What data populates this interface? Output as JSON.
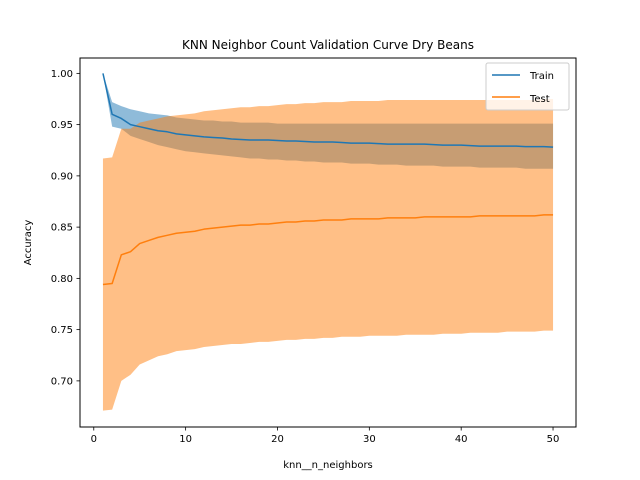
{
  "chart_data": {
    "type": "line",
    "title": "KNN Neighbor Count Validation Curve Dry Beans",
    "xlabel": "knn__n_neighbors",
    "ylabel": "Accuracy",
    "xlim": [
      -1.5,
      52.5
    ],
    "ylim": [
      0.655,
      1.015
    ],
    "x_ticks": [
      0,
      10,
      20,
      30,
      40,
      50
    ],
    "y_ticks": [
      0.7,
      0.75,
      0.8,
      0.85,
      0.9,
      0.95,
      1.0
    ],
    "y_tick_labels": [
      "0.70",
      "0.75",
      "0.80",
      "0.85",
      "0.90",
      "0.95",
      "1.00"
    ],
    "grid": false,
    "legend_position": "upper right",
    "x": [
      1,
      2,
      3,
      4,
      5,
      6,
      7,
      8,
      9,
      10,
      11,
      12,
      13,
      14,
      15,
      16,
      17,
      18,
      19,
      20,
      21,
      22,
      23,
      24,
      25,
      26,
      27,
      28,
      29,
      30,
      31,
      32,
      33,
      34,
      35,
      36,
      37,
      38,
      39,
      40,
      41,
      42,
      43,
      44,
      45,
      46,
      47,
      48,
      49,
      50
    ],
    "series": [
      {
        "name": "Train",
        "color": "#1f77b4",
        "band_color": "#1f77b4",
        "values": [
          1.0,
          0.96,
          0.956,
          0.95,
          0.948,
          0.946,
          0.944,
          0.943,
          0.941,
          0.94,
          0.939,
          0.938,
          0.9375,
          0.937,
          0.936,
          0.9355,
          0.935,
          0.935,
          0.935,
          0.9345,
          0.934,
          0.934,
          0.9335,
          0.933,
          0.933,
          0.933,
          0.9325,
          0.932,
          0.932,
          0.932,
          0.9315,
          0.931,
          0.931,
          0.931,
          0.931,
          0.931,
          0.9305,
          0.93,
          0.93,
          0.93,
          0.9295,
          0.929,
          0.929,
          0.929,
          0.929,
          0.929,
          0.9285,
          0.9285,
          0.9285,
          0.928
        ],
        "lower": [
          1.0,
          0.948,
          0.946,
          0.939,
          0.936,
          0.933,
          0.93,
          0.928,
          0.926,
          0.924,
          0.923,
          0.922,
          0.921,
          0.92,
          0.919,
          0.918,
          0.917,
          0.917,
          0.916,
          0.916,
          0.915,
          0.915,
          0.914,
          0.914,
          0.913,
          0.913,
          0.913,
          0.912,
          0.912,
          0.912,
          0.911,
          0.911,
          0.911,
          0.91,
          0.91,
          0.91,
          0.91,
          0.909,
          0.909,
          0.909,
          0.909,
          0.908,
          0.908,
          0.908,
          0.908,
          0.908,
          0.907,
          0.907,
          0.907,
          0.907
        ],
        "upper": [
          1.0,
          0.972,
          0.968,
          0.965,
          0.963,
          0.961,
          0.96,
          0.959,
          0.957,
          0.956,
          0.955,
          0.954,
          0.954,
          0.953,
          0.953,
          0.952,
          0.952,
          0.952,
          0.952,
          0.951,
          0.951,
          0.951,
          0.951,
          0.951,
          0.951,
          0.951,
          0.951,
          0.951,
          0.951,
          0.951,
          0.951,
          0.951,
          0.951,
          0.951,
          0.951,
          0.951,
          0.951,
          0.951,
          0.951,
          0.951,
          0.951,
          0.951,
          0.951,
          0.951,
          0.951,
          0.951,
          0.951,
          0.951,
          0.951,
          0.951
        ]
      },
      {
        "name": "Test",
        "color": "#ff7f0e",
        "band_color": "#ff7f0e",
        "values": [
          0.794,
          0.795,
          0.823,
          0.826,
          0.834,
          0.837,
          0.84,
          0.842,
          0.844,
          0.845,
          0.846,
          0.848,
          0.849,
          0.85,
          0.851,
          0.852,
          0.852,
          0.853,
          0.853,
          0.854,
          0.855,
          0.855,
          0.856,
          0.856,
          0.857,
          0.857,
          0.857,
          0.858,
          0.858,
          0.858,
          0.858,
          0.859,
          0.859,
          0.859,
          0.859,
          0.86,
          0.86,
          0.86,
          0.86,
          0.86,
          0.86,
          0.861,
          0.861,
          0.861,
          0.861,
          0.861,
          0.861,
          0.861,
          0.862,
          0.862
        ],
        "lower": [
          0.671,
          0.672,
          0.7,
          0.706,
          0.716,
          0.72,
          0.724,
          0.726,
          0.729,
          0.73,
          0.731,
          0.733,
          0.734,
          0.735,
          0.736,
          0.736,
          0.737,
          0.738,
          0.738,
          0.739,
          0.74,
          0.74,
          0.741,
          0.741,
          0.742,
          0.742,
          0.743,
          0.743,
          0.743,
          0.744,
          0.744,
          0.744,
          0.744,
          0.745,
          0.745,
          0.745,
          0.745,
          0.746,
          0.746,
          0.746,
          0.747,
          0.747,
          0.747,
          0.747,
          0.748,
          0.748,
          0.748,
          0.748,
          0.749,
          0.749
        ],
        "upper": [
          0.917,
          0.918,
          0.946,
          0.946,
          0.952,
          0.954,
          0.956,
          0.958,
          0.959,
          0.96,
          0.961,
          0.963,
          0.964,
          0.965,
          0.966,
          0.967,
          0.967,
          0.968,
          0.968,
          0.969,
          0.97,
          0.97,
          0.971,
          0.971,
          0.972,
          0.972,
          0.972,
          0.973,
          0.973,
          0.973,
          0.973,
          0.974,
          0.974,
          0.974,
          0.974,
          0.974,
          0.974,
          0.974,
          0.974,
          0.974,
          0.974,
          0.974,
          0.974,
          0.974,
          0.974,
          0.974,
          0.974,
          0.974,
          0.975,
          0.975
        ]
      }
    ]
  }
}
